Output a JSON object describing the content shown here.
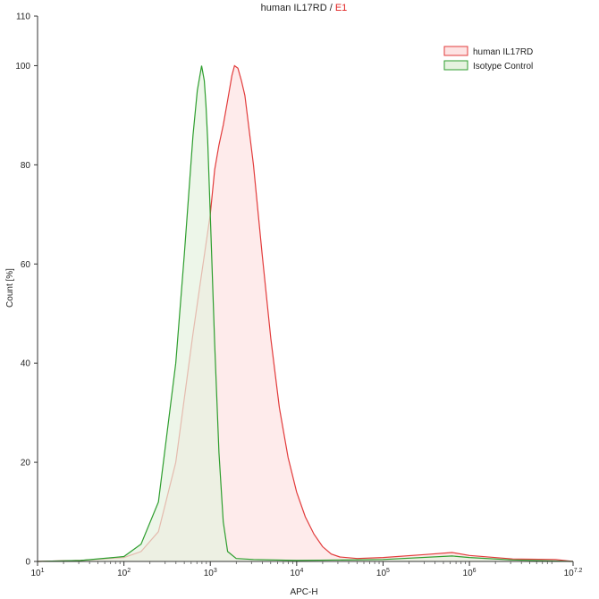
{
  "chart_data": {
    "type": "area",
    "title": {
      "prefix": "human IL17RD",
      "separator": " / ",
      "gate": "E1",
      "gate_color": "#e0201f"
    },
    "xlabel": "APC-H",
    "ylabel": "Count [%]",
    "x_scale": "log10",
    "xlim": [
      10,
      15848931.9
    ],
    "ylim": [
      0,
      110
    ],
    "x_ticks": [
      {
        "base": "10",
        "exp": "1",
        "value": 10
      },
      {
        "base": "10",
        "exp": "2",
        "value": 100
      },
      {
        "base": "10",
        "exp": "3",
        "value": 1000
      },
      {
        "base": "10",
        "exp": "4",
        "value": 10000
      },
      {
        "base": "10",
        "exp": "5",
        "value": 100000
      },
      {
        "base": "10",
        "exp": "6",
        "value": 1000000
      },
      {
        "base": "10",
        "exp": "7.2",
        "value": 15848931.9
      }
    ],
    "y_ticks": [
      "0",
      "20",
      "40",
      "60",
      "80",
      "100",
      "110"
    ],
    "y_tick_values": [
      0,
      20,
      40,
      60,
      80,
      100,
      110
    ],
    "legend_position": "top-right",
    "grid": false,
    "series": [
      {
        "name": "human IL17RD",
        "color": "#e23b3b",
        "fill": "#fde3e3",
        "x": [
          10,
          31.6,
          100,
          158,
          251,
          398,
          631,
          794,
          1000,
          1122,
          1259,
          1413,
          1585,
          1778,
          1905,
          2089,
          2291,
          2512,
          3162,
          3981,
          5012,
          6310,
          7943,
          10000,
          12589,
          15849,
          19953,
          25119,
          31623,
          50119,
          100000,
          316228,
          630957,
          1000000,
          3162278,
          10000000,
          15848932
        ],
        "y": [
          0,
          0.2,
          0.8,
          2,
          6,
          20,
          46,
          58,
          70,
          79,
          84,
          88,
          93,
          98,
          100,
          99.5,
          97,
          94,
          80,
          62,
          45,
          31,
          21,
          14,
          9,
          5.5,
          3,
          1.5,
          0.9,
          0.6,
          0.8,
          1.4,
          1.8,
          1.2,
          0.5,
          0.4,
          0
        ]
      },
      {
        "name": "Isotype Control",
        "color": "#2e9e2e",
        "fill": "#e6f2e0",
        "x": [
          10,
          31.6,
          100,
          158,
          251,
          398,
          501,
          631,
          708,
          794,
          851,
          891,
          933,
          1000,
          1122,
          1259,
          1413,
          1585,
          1995,
          3162,
          10000,
          100000,
          630957,
          1000000,
          3162278,
          15848932
        ],
        "y": [
          0,
          0.2,
          1,
          3.5,
          12,
          40,
          62,
          86,
          95,
          100,
          97,
          92,
          85,
          70,
          44,
          22,
          8,
          2,
          0.6,
          0.4,
          0.2,
          0.4,
          1.1,
          0.8,
          0.3,
          0
        ]
      }
    ]
  }
}
